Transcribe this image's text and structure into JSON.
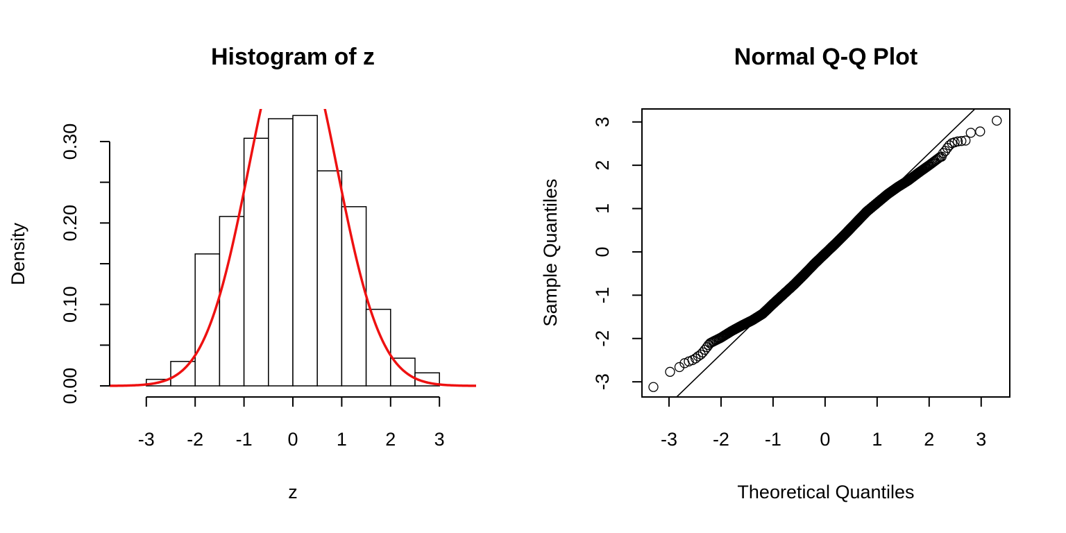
{
  "chart_data": [
    {
      "type": "bar",
      "title": "Histogram of z",
      "xlabel": "z",
      "ylabel": "Density",
      "bin_edges": [
        -3.5,
        -3.0,
        -2.5,
        -2.0,
        -1.5,
        -1.0,
        -0.5,
        0.0,
        0.5,
        1.0,
        1.5,
        2.0,
        2.5,
        3.0
      ],
      "values": [
        0.0,
        0.008,
        0.03,
        0.162,
        0.208,
        0.304,
        0.328,
        0.332,
        0.264,
        0.22,
        0.094,
        0.034,
        0.016
      ],
      "xlim": [
        -3.75,
        3.75
      ],
      "ylim": [
        0,
        0.34
      ],
      "x_ticks": [
        -3,
        -2,
        -1,
        0,
        1,
        2,
        3
      ],
      "x_tick_labels": [
        "-3",
        "-2",
        "-1",
        "0",
        "1",
        "2",
        "3"
      ],
      "y_ticks": [
        0,
        0.05,
        0.1,
        0.15,
        0.2,
        0.25,
        0.3
      ],
      "y_tick_labels": [
        "0.00",
        "",
        "0.10",
        "",
        "0.20",
        "",
        "0.30"
      ],
      "grid": false,
      "overlay": {
        "type": "line",
        "curve": "density",
        "mean": 0,
        "sd": 0.9,
        "color": "#ee1111"
      },
      "bar_fill": "#ffffff",
      "bar_stroke": "#000000"
    },
    {
      "type": "scatter",
      "title": "Normal Q-Q Plot",
      "xlabel": "Theoretical Quantiles",
      "ylabel": "Sample Quantiles",
      "xlim": [
        -3.52,
        3.55
      ],
      "ylim": [
        -3.35,
        3.3
      ],
      "x_ticks": [
        -3,
        -2,
        -1,
        0,
        1,
        2,
        3
      ],
      "x_tick_labels": [
        "-3",
        "-2",
        "-1",
        "0",
        "1",
        "2",
        "3"
      ],
      "y_ticks": [
        -3,
        -2,
        -1,
        0,
        1,
        2,
        3
      ],
      "y_tick_labels": [
        "-3",
        "-2",
        "-1",
        "0",
        "1",
        "2",
        "3"
      ],
      "grid": false,
      "sample_size": 1000,
      "points_core": {
        "x": [
          -2.2,
          -2.0,
          -1.8,
          -1.6,
          -1.4,
          -1.2,
          -1.0,
          -0.8,
          -0.6,
          -0.4,
          -0.2,
          0.0,
          0.2,
          0.4,
          0.6,
          0.8,
          1.0,
          1.2,
          1.4,
          1.6,
          1.8,
          2.0,
          2.2
        ],
        "y": [
          -2.1,
          -1.98,
          -1.83,
          -1.7,
          -1.58,
          -1.43,
          -1.2,
          -0.98,
          -0.76,
          -0.52,
          -0.27,
          -0.04,
          0.19,
          0.43,
          0.68,
          0.93,
          1.13,
          1.33,
          1.5,
          1.65,
          1.83,
          2.0,
          2.18
        ]
      },
      "points_tail": {
        "x": [
          -3.3,
          -2.98,
          -2.8,
          -2.7,
          -2.62,
          -2.55,
          -2.49,
          -2.44,
          -2.39,
          -2.35,
          -2.31,
          -2.27,
          -2.24,
          2.24,
          2.27,
          2.31,
          2.35,
          2.39,
          2.44,
          2.49,
          2.55,
          2.62,
          2.7,
          2.8,
          2.98,
          3.3
        ],
        "y": [
          -3.12,
          -2.77,
          -2.66,
          -2.57,
          -2.53,
          -2.5,
          -2.46,
          -2.41,
          -2.37,
          -2.32,
          -2.26,
          -2.2,
          -2.15,
          2.2,
          2.28,
          2.33,
          2.4,
          2.46,
          2.51,
          2.53,
          2.55,
          2.56,
          2.57,
          2.75,
          2.78,
          3.03
        ]
      },
      "reference_line": {
        "intercept": -0.04,
        "slope": 1.16
      },
      "point_style": "open-circle"
    }
  ]
}
